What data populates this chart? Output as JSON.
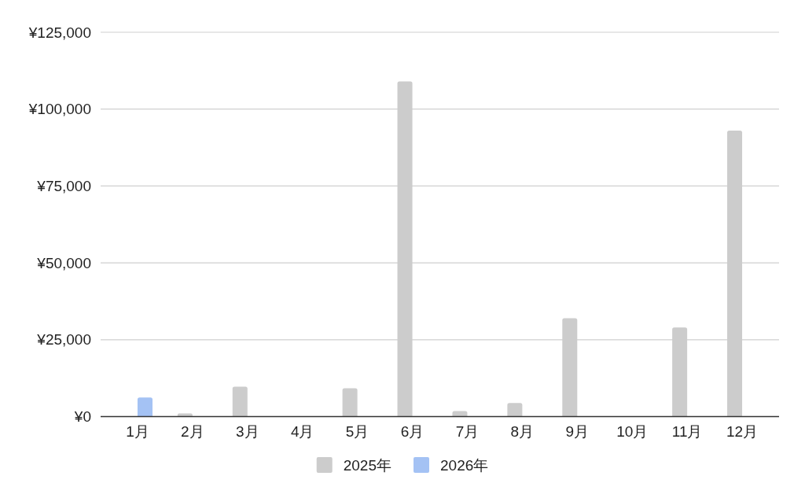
{
  "chart_data": {
    "type": "bar",
    "categories": [
      "1月",
      "2月",
      "3月",
      "4月",
      "5月",
      "6月",
      "7月",
      "8月",
      "9月",
      "10月",
      "11月",
      "12月"
    ],
    "series": [
      {
        "name": "2025年",
        "color": "#cccccc",
        "values": [
          null,
          1000,
          9700,
          null,
          9200,
          109000,
          1800,
          4400,
          32000,
          null,
          29000,
          93000
        ]
      },
      {
        "name": "2026年",
        "color": "#a4c2f4",
        "values": [
          6200,
          null,
          null,
          null,
          null,
          null,
          null,
          null,
          null,
          null,
          null,
          null
        ]
      }
    ],
    "ylim": [
      0,
      125000
    ],
    "yticks": [
      {
        "value": 0,
        "label": "¥0"
      },
      {
        "value": 25000,
        "label": "¥25,000"
      },
      {
        "value": 50000,
        "label": "¥50,000"
      },
      {
        "value": 75000,
        "label": "¥75,000"
      },
      {
        "value": 100000,
        "label": "¥100,000"
      },
      {
        "value": 125000,
        "label": "¥125,000"
      }
    ],
    "grid": "y",
    "legend": "bottom"
  }
}
